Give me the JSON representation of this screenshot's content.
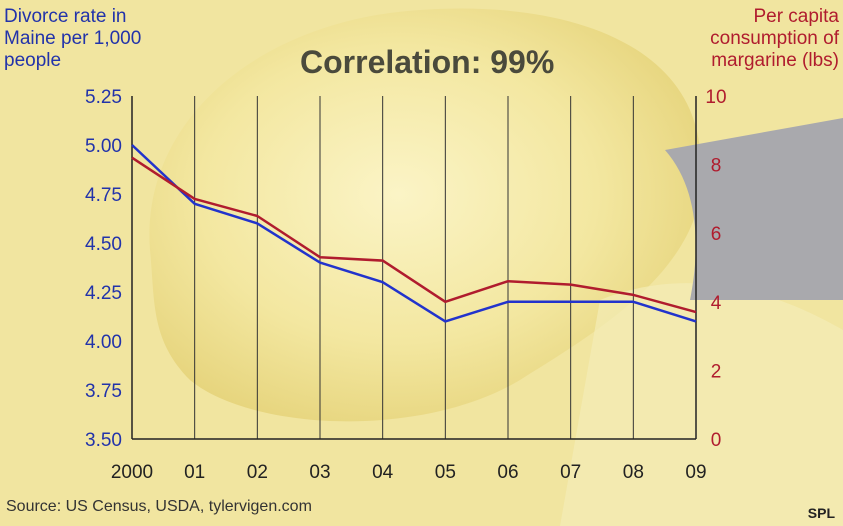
{
  "chart_data": {
    "type": "line",
    "title": "Correlation: 99%",
    "ylabel_left": "Divorce rate in Maine per 1,000 people",
    "ylabel_right": "Per capita consumption of margarine (lbs)",
    "x": [
      "2000",
      "01",
      "02",
      "03",
      "04",
      "05",
      "06",
      "07",
      "08",
      "09"
    ],
    "ylim_left": [
      3.5,
      5.25
    ],
    "ylim_right": [
      0,
      10
    ],
    "yticks_left": [
      "5.25",
      "5.00",
      "4.75",
      "4.50",
      "4.25",
      "4.00",
      "3.75",
      "3.50"
    ],
    "yticks_right": [
      "10",
      "8",
      "6",
      "4",
      "2",
      "0"
    ],
    "grid": "vertical",
    "series": [
      {
        "axis": "left",
        "color": "#2233cc",
        "values": [
          5.0,
          4.7,
          4.6,
          4.4,
          4.3,
          4.1,
          4.2,
          4.2,
          4.2,
          4.1
        ]
      },
      {
        "axis": "right",
        "color": "#b01c2e",
        "values": [
          8.2,
          7.0,
          6.5,
          5.3,
          5.2,
          4.0,
          4.6,
          4.5,
          4.2,
          3.7
        ]
      }
    ]
  },
  "source": "Source: US Census, USDA, tylervigen.com",
  "credit": "SPL"
}
